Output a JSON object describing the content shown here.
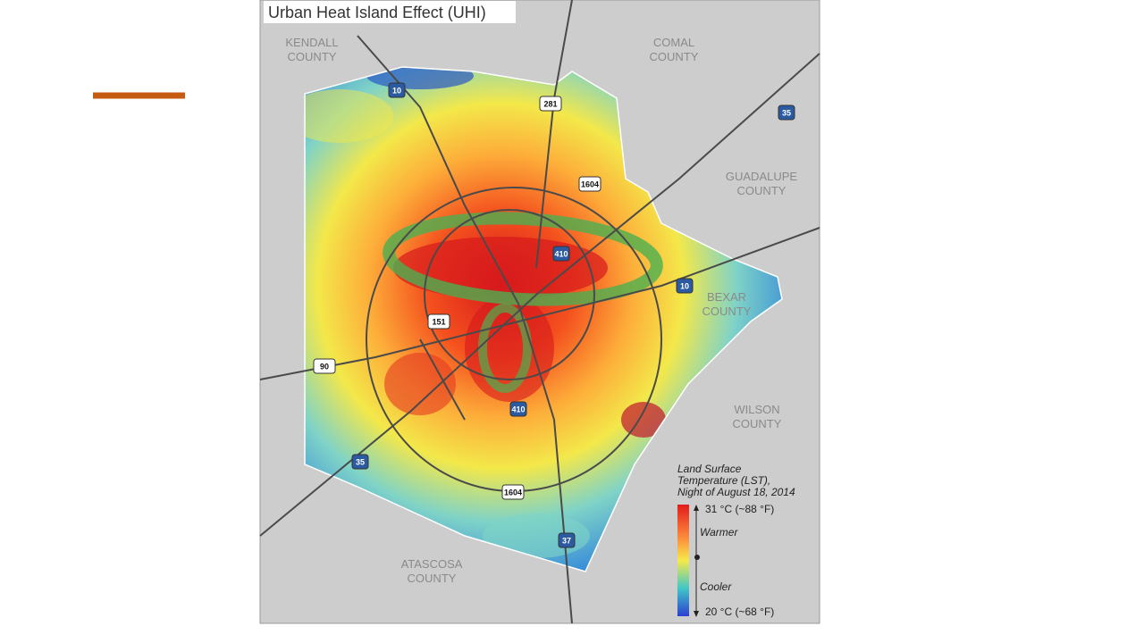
{
  "map": {
    "title": "Urban Heat Island Effect (UHI)",
    "counties": [
      {
        "lines": [
          "KENDALL",
          "COUNTY"
        ]
      },
      {
        "lines": [
          "COMAL",
          "COUNTY"
        ]
      },
      {
        "lines": [
          "GUADALUPE",
          "COUNTY"
        ]
      },
      {
        "lines": [
          "BEXAR",
          "COUNTY"
        ]
      },
      {
        "lines": [
          "WILSON",
          "COUNTY"
        ]
      },
      {
        "lines": [
          "ATASCOSA",
          "COUNTY"
        ]
      }
    ],
    "highways": [
      "10",
      "281",
      "35",
      "1604",
      "410",
      "10",
      "151",
      "90",
      "410",
      "35",
      "1604",
      "37"
    ],
    "legend": {
      "title_lines": [
        "Land Surface",
        "Temperature (LST),",
        "Night of August 18, 2014"
      ],
      "max_label": "31 °C (~88 °F)",
      "warmer": "Warmer",
      "cooler": "Cooler",
      "min_label": "20 °C (~68 °F)"
    }
  }
}
